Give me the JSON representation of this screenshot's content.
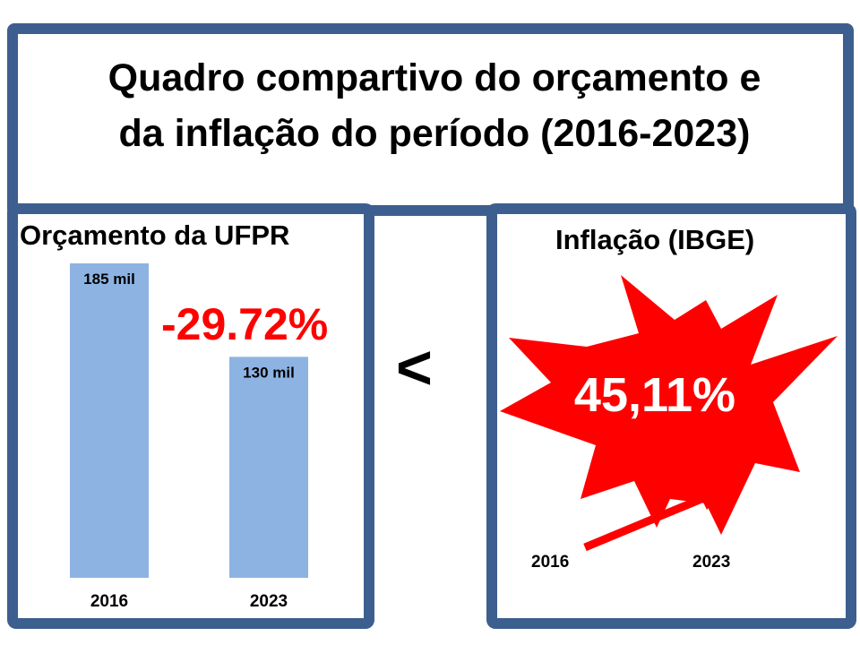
{
  "title": {
    "line1": "Quadro compartivo do orçamento e",
    "line2": "da inflação do período (2016-2023)"
  },
  "budget_panel": {
    "title": "Orçamento da UFPR",
    "change_label": "-29.72%"
  },
  "comparator": "<",
  "inflation_panel": {
    "title": "Inflação (IBGE)",
    "value": "45,11%",
    "start_year": "2016",
    "end_year": "2023"
  },
  "colors": {
    "frame": "#3d5f8f",
    "bar": "#8db3e2",
    "negative": "#ff0000",
    "burst": "#ff0000"
  },
  "chart_data": {
    "type": "bar",
    "categories": [
      "2016",
      "2023"
    ],
    "values": [
      185,
      130
    ],
    "data_labels": [
      "185 mil",
      "130 mil"
    ],
    "ylim": [
      0,
      185
    ],
    "grid": false
  }
}
